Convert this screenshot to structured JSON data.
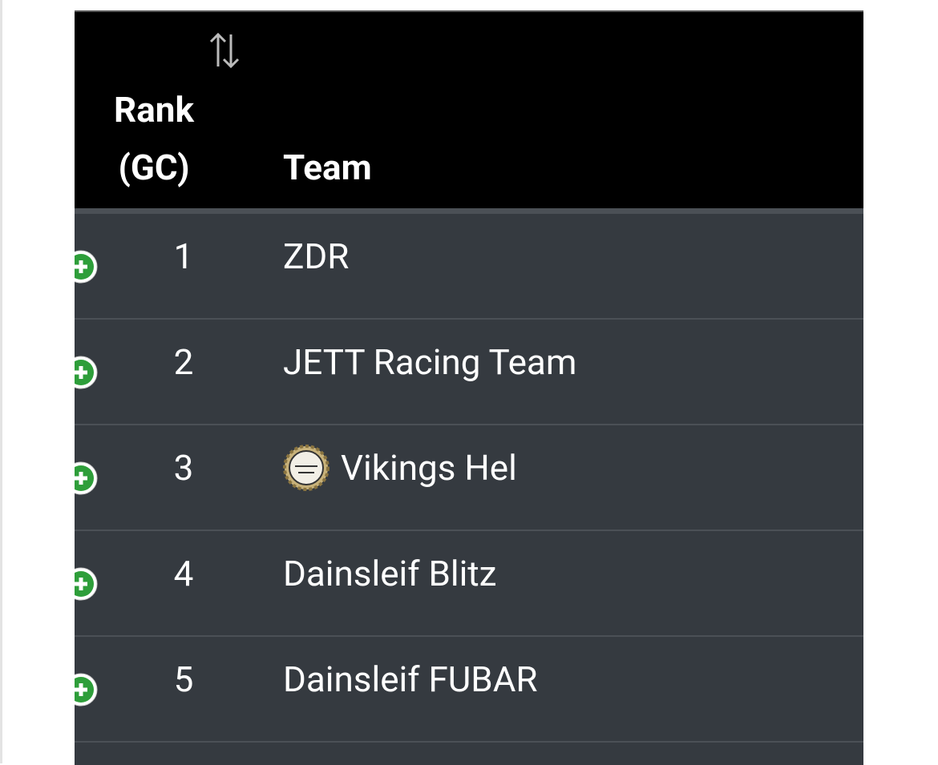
{
  "table": {
    "headers": [
      "Rank (GC)",
      "Team"
    ],
    "rows": [
      [
        1,
        "ZDR"
      ],
      [
        2,
        "JETT Racing Team"
      ],
      [
        3,
        "Vikings Hel"
      ],
      [
        4,
        "Dainsleif Blitz"
      ],
      [
        5,
        "Dainsleif FUBAR"
      ]
    ]
  }
}
